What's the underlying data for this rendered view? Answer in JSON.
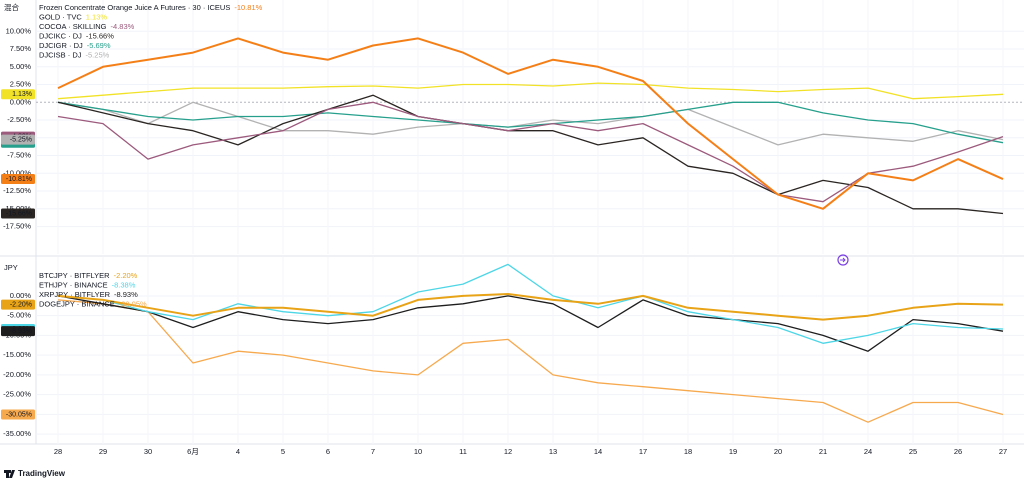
{
  "branding": "TradingView",
  "chart_data": [
    {
      "type": "line",
      "pane_label": "混合",
      "categories": [
        "28",
        "29",
        "30",
        "6月",
        "4",
        "5",
        "6",
        "7",
        "10",
        "11",
        "12",
        "13",
        "14",
        "17",
        "18",
        "19",
        "20",
        "21",
        "24",
        "25",
        "26",
        "27"
      ],
      "ylim": [
        -20.8,
        13.7
      ],
      "yticks": [
        {
          "value": 10,
          "label": "10.00%"
        },
        {
          "value": 7.5,
          "label": "7.50%"
        },
        {
          "value": 5,
          "label": "5.00%"
        },
        {
          "value": 2.5,
          "label": "2.50%"
        },
        {
          "value": 0,
          "label": "0.00%"
        },
        {
          "value": -2.5,
          "label": "-2.50%"
        },
        {
          "value": -5,
          "label": "-5.00%"
        },
        {
          "value": -7.5,
          "label": "-7.50%"
        },
        {
          "value": -10,
          "label": "-10.00%"
        },
        {
          "value": -12.5,
          "label": "-12.50%"
        },
        {
          "value": -15,
          "label": "-15.00%"
        },
        {
          "value": -17.5,
          "label": "-17.50%"
        }
      ],
      "grid": true,
      "series": [
        {
          "name": "Frozen Concentrate Orange Juice A Futures · 30 · ICEUS",
          "color": "#f57f17",
          "values": [
            2,
            5,
            6,
            7,
            9,
            7,
            6,
            8,
            9,
            7,
            4,
            6,
            5,
            3,
            -3,
            -8,
            -13,
            -15,
            -10,
            -11,
            -8,
            -10.81
          ],
          "value_labels": [
            null,
            null,
            null,
            null,
            null,
            null,
            null,
            null,
            null,
            null,
            null,
            null,
            null,
            null,
            null,
            null,
            null,
            null,
            null,
            null,
            null,
            "-10.81%"
          ]
        },
        {
          "name": "GOLD · TVC",
          "color": "#f2e227",
          "values": [
            0.5,
            1,
            1.5,
            2,
            2,
            2,
            2.2,
            2.3,
            2,
            2.5,
            2.5,
            2.3,
            2.7,
            2.5,
            2,
            1.8,
            1.5,
            1.8,
            2,
            0.5,
            0.8,
            1.13
          ],
          "value_labels": [
            null,
            null,
            null,
            null,
            null,
            null,
            null,
            null,
            null,
            null,
            null,
            null,
            null,
            null,
            null,
            null,
            null,
            null,
            null,
            null,
            null,
            "1.13%"
          ]
        },
        {
          "name": "COCOA · SKILLING",
          "color": "#9c5a7c",
          "values": [
            -2,
            -3,
            -8,
            -6,
            -5,
            -4,
            -1,
            0,
            -2,
            -3,
            -4,
            -3,
            -4,
            -3,
            -6,
            -9,
            -13,
            -14,
            -10,
            -9,
            -7,
            -4.83
          ],
          "value_labels": [
            null,
            null,
            null,
            null,
            null,
            null,
            null,
            null,
            null,
            null,
            null,
            null,
            null,
            null,
            null,
            null,
            null,
            null,
            null,
            null,
            null,
            "-4.83%"
          ]
        },
        {
          "name": "DJCIKC · DJ",
          "color": "#2a2522",
          "values": [
            0,
            -1.5,
            -3,
            -4,
            -6,
            -3,
            -1,
            1,
            -2,
            -3,
            -4,
            -4,
            -6,
            -5,
            -9,
            -10,
            -13,
            -11,
            -12,
            -15,
            -15,
            -15.66
          ],
          "value_labels": [
            null,
            null,
            null,
            null,
            null,
            null,
            null,
            null,
            null,
            null,
            null,
            null,
            null,
            null,
            null,
            null,
            null,
            null,
            null,
            null,
            null,
            "-15.66%"
          ]
        },
        {
          "name": "DJCIGR · DJ",
          "color": "#26a08c",
          "values": [
            0,
            -1,
            -2,
            -2.5,
            -2,
            -2,
            -1.5,
            -2,
            -2.5,
            -3,
            -3.5,
            -3,
            -2.5,
            -2,
            -1,
            0,
            0,
            -1.5,
            -2.5,
            -3,
            -4.5,
            -5.69
          ],
          "value_labels": [
            null,
            null,
            null,
            null,
            null,
            null,
            null,
            null,
            null,
            null,
            null,
            null,
            null,
            null,
            null,
            null,
            null,
            null,
            null,
            null,
            null,
            "-5.69%"
          ]
        },
        {
          "name": "DJCISB · DJ",
          "color": "#b2b2b2",
          "values": [
            0,
            -1,
            -3,
            0,
            -2,
            -4,
            -4,
            -4.5,
            -3.5,
            -3,
            -3.5,
            -2.5,
            -3,
            -2,
            -1,
            -3.5,
            -6,
            -4.5,
            -5,
            -5.5,
            -4,
            -5.25
          ],
          "value_labels": [
            null,
            null,
            null,
            null,
            null,
            null,
            null,
            null,
            null,
            null,
            null,
            null,
            null,
            null,
            null,
            null,
            null,
            null,
            null,
            null,
            null,
            "-5.25%"
          ]
        }
      ]
    },
    {
      "type": "line",
      "pane_label": "JPY",
      "categories": [
        "28",
        "29",
        "30",
        "6月",
        "4",
        "5",
        "6",
        "7",
        "10",
        "11",
        "12",
        "13",
        "14",
        "17",
        "18",
        "19",
        "20",
        "21",
        "24",
        "25",
        "26",
        "27"
      ],
      "ylim": [
        -36.5,
        8.6
      ],
      "yticks": [
        {
          "value": 0,
          "label": "0.00%"
        },
        {
          "value": -5,
          "label": "-5.00%"
        },
        {
          "value": -10,
          "label": "-10.00%"
        },
        {
          "value": -15,
          "label": "-15.00%"
        },
        {
          "value": -20,
          "label": "-20.00%"
        },
        {
          "value": -25,
          "label": "-25.00%"
        },
        {
          "value": -30,
          "label": "-30.00%"
        },
        {
          "value": -35,
          "label": "-35.00%"
        }
      ],
      "grid": true,
      "series": [
        {
          "name": "BTCJPY · BITFLYER",
          "color": "#e8a317",
          "values": [
            0,
            -1,
            -3,
            -5,
            -3,
            -3,
            -4,
            -5,
            -1,
            0,
            0.5,
            -1,
            -2,
            0,
            -3,
            -4,
            -5,
            -6,
            -5,
            -3,
            -2,
            -2.2
          ],
          "value_labels": [
            null,
            null,
            null,
            null,
            null,
            null,
            null,
            null,
            null,
            null,
            null,
            null,
            null,
            null,
            null,
            null,
            null,
            null,
            null,
            null,
            null,
            "-2.20%"
          ]
        },
        {
          "name": "ETHJPY · BINANCE",
          "color": "#4dd6e6",
          "values": [
            0,
            -1,
            -4,
            -6,
            -2,
            -4,
            -5,
            -4,
            1,
            3,
            8,
            0,
            -3,
            0,
            -4,
            -6,
            -8,
            -12,
            -10,
            -7,
            -8,
            -8.38
          ],
          "value_labels": [
            null,
            null,
            null,
            null,
            null,
            null,
            null,
            null,
            null,
            null,
            null,
            null,
            null,
            null,
            null,
            null,
            null,
            null,
            null,
            null,
            null,
            "-8.38%"
          ]
        },
        {
          "name": "XRPJPY · BITFLYER",
          "color": "#1e1e1e",
          "values": [
            0,
            -2,
            -4,
            -8,
            -4,
            -6,
            -7,
            -6,
            -3,
            -2,
            0,
            -2,
            -8,
            -1,
            -5,
            -6,
            -7,
            -10,
            -14,
            -6,
            -7,
            -8.93
          ],
          "value_labels": [
            null,
            null,
            null,
            null,
            null,
            null,
            null,
            null,
            null,
            null,
            null,
            null,
            null,
            null,
            null,
            null,
            null,
            null,
            null,
            null,
            null,
            "-8.93%"
          ]
        },
        {
          "name": "DOGEJPY · BINANCE",
          "color": "#f7a94e",
          "values": [
            -1,
            -2,
            -4,
            -17,
            -14,
            -15,
            -17,
            -19,
            -20,
            -12,
            -11,
            -20,
            -22,
            -23,
            -24,
            -25,
            -26,
            -27,
            -32,
            -27,
            -27,
            -30.05
          ],
          "value_labels": [
            null,
            null,
            null,
            null,
            null,
            null,
            null,
            null,
            null,
            null,
            null,
            null,
            null,
            null,
            null,
            null,
            null,
            null,
            null,
            null,
            null,
            "-30.05%"
          ]
        }
      ]
    }
  ]
}
